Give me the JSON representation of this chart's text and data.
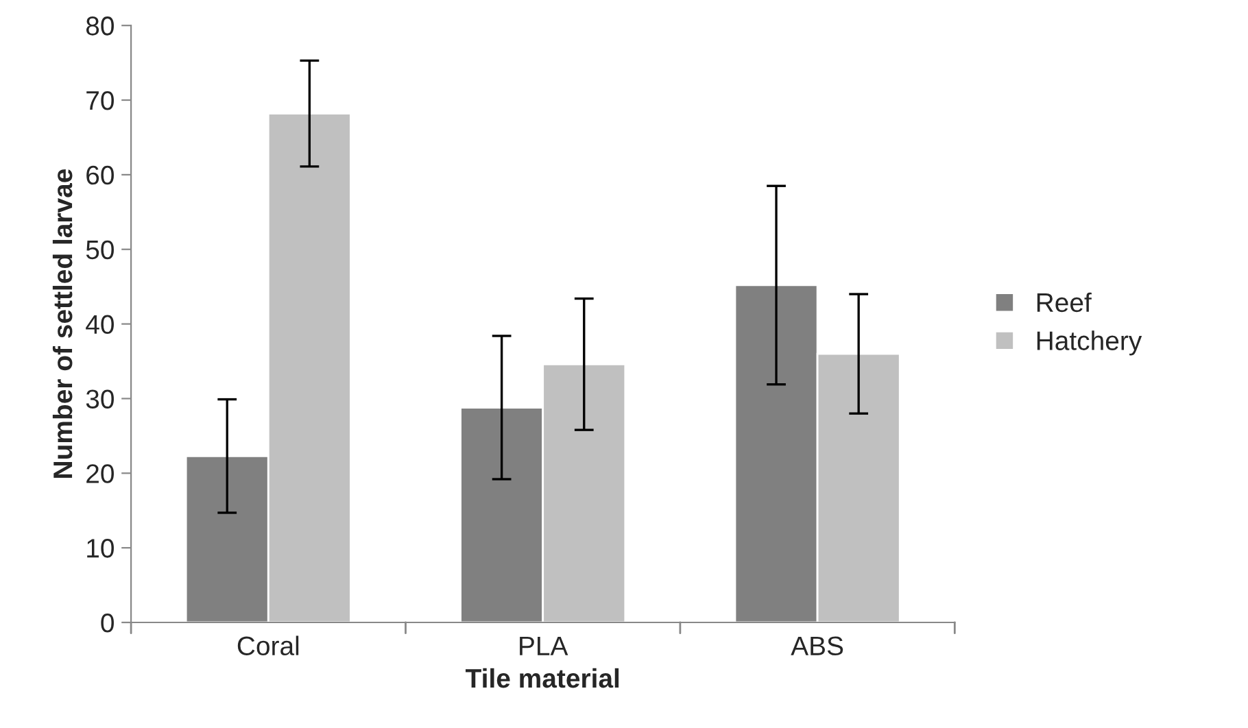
{
  "chart_data": {
    "type": "bar",
    "xlabel": "Tile material",
    "ylabel": "Number of settled larvae",
    "categories": [
      "Coral",
      "PLA",
      "ABS"
    ],
    "series": [
      {
        "name": "Reef",
        "color": "#808080",
        "values": [
          22.3,
          28.8,
          45.2
        ],
        "errors": [
          7.6,
          9.6,
          13.3
        ]
      },
      {
        "name": "Hatchery",
        "color": "#c0c0c0",
        "values": [
          68.2,
          34.6,
          36.0
        ],
        "errors": [
          7.1,
          8.8,
          8.0
        ]
      }
    ],
    "ylim": [
      0,
      80
    ],
    "yticks": [
      0,
      10,
      20,
      30,
      40,
      50,
      60,
      70,
      80
    ],
    "grid": false,
    "legend": "right"
  }
}
